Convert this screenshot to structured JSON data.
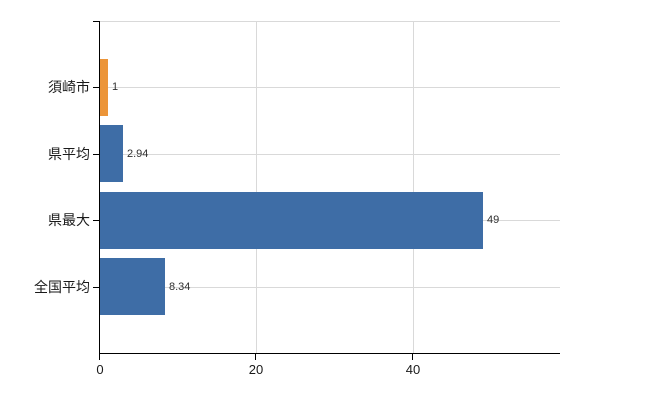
{
  "chart_data": {
    "type": "bar",
    "orientation": "horizontal",
    "title": "",
    "categories": [
      "須崎市",
      "県平均",
      "県最大",
      "全国平均"
    ],
    "values": [
      1,
      2.94,
      49,
      8.34
    ],
    "value_labels": [
      "1",
      "2.94",
      "49",
      "8.34"
    ],
    "bar_colors": [
      "#EC9539",
      "#3E6DA6",
      "#3E6DA6",
      "#3E6DA6"
    ],
    "x_ticks": [
      0,
      20,
      40
    ],
    "x_tick_labels": [
      "0",
      "20",
      "40"
    ],
    "xlim": [
      0,
      58.8
    ],
    "grid": true,
    "legend_position": "none",
    "colors": {
      "bar_default": "#3E6DA6",
      "bar_highlight": "#EC9539",
      "gridline": "#D9D9D9",
      "axis": "#000000",
      "category_text": "#1A1A1A",
      "value_text": "#303030"
    }
  }
}
